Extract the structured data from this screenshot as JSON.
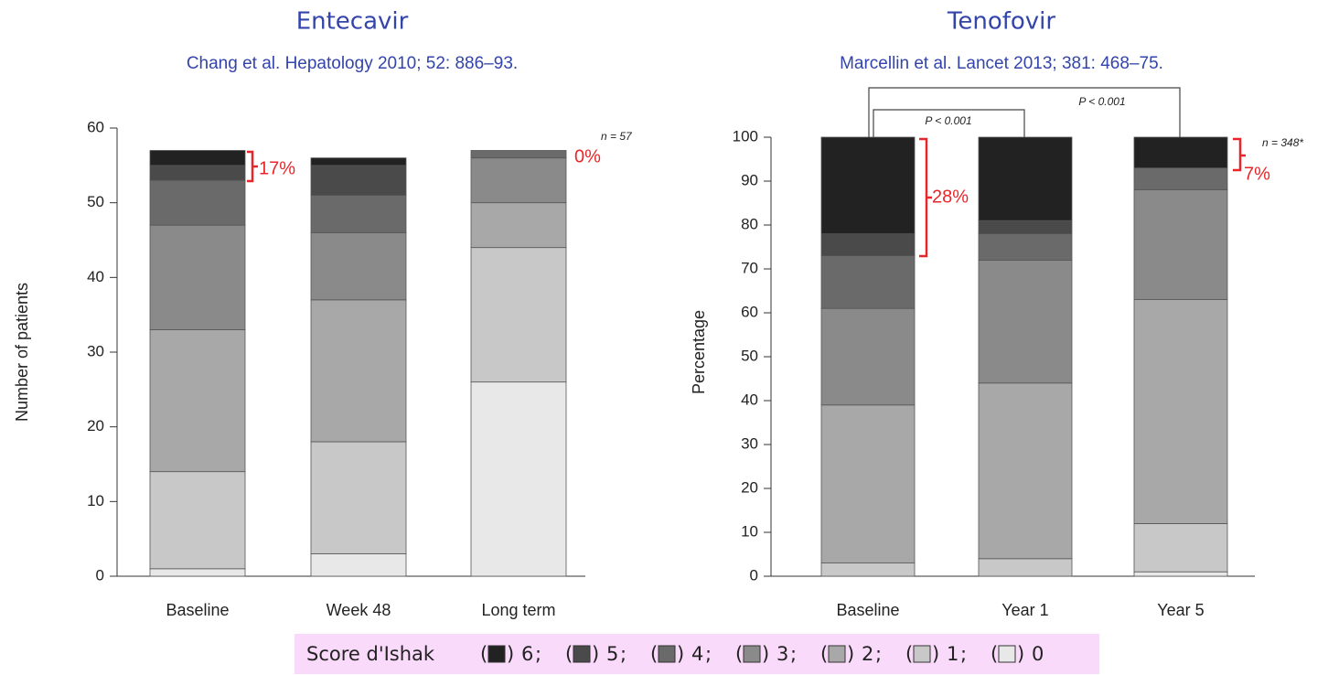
{
  "chart_data": [
    {
      "type": "stacked_bar",
      "title": "Entecavir",
      "subtitle": "Chang et al. Hepatology 2010; 52: 886–93.",
      "ylabel": "Number of patients",
      "categories": [
        "Baseline",
        "Week 48",
        "Long term"
      ],
      "series": [
        {
          "name": "0",
          "color": "#e8e8e8",
          "values": [
            1,
            3,
            26
          ]
        },
        {
          "name": "1",
          "color": "#c8c8c8",
          "values": [
            13,
            15,
            18
          ]
        },
        {
          "name": "2",
          "color": "#a8a8a8",
          "values": [
            19,
            19,
            6
          ]
        },
        {
          "name": "3",
          "color": "#8a8a8a",
          "values": [
            14,
            9,
            6
          ]
        },
        {
          "name": "4",
          "color": "#6a6a6a",
          "values": [
            6,
            5,
            1
          ]
        },
        {
          "name": "5",
          "color": "#4a4a4a",
          "values": [
            2,
            4,
            0
          ]
        },
        {
          "name": "6",
          "color": "#222222",
          "values": [
            2,
            1,
            0
          ]
        }
      ],
      "ylim": [
        0,
        60
      ],
      "yticks": [
        0,
        10,
        20,
        30,
        40,
        50,
        60
      ],
      "annotations": [
        "17%",
        "0%",
        "n = 57"
      ]
    },
    {
      "type": "stacked_bar",
      "title": "Tenofovir",
      "subtitle": "Marcellin et al. Lancet 2013; 381: 468–75.",
      "ylabel": "Percentage",
      "categories": [
        "Baseline",
        "Year 1",
        "Year 5"
      ],
      "series": [
        {
          "name": "0",
          "color": "#e8e8e8",
          "values": [
            0,
            0,
            1
          ]
        },
        {
          "name": "1",
          "color": "#c8c8c8",
          "values": [
            3,
            4,
            11
          ]
        },
        {
          "name": "2",
          "color": "#a8a8a8",
          "values": [
            36,
            40,
            51
          ]
        },
        {
          "name": "3",
          "color": "#8a8a8a",
          "values": [
            22,
            28,
            25
          ]
        },
        {
          "name": "4",
          "color": "#6a6a6a",
          "values": [
            12,
            6,
            5
          ]
        },
        {
          "name": "5",
          "color": "#4a4a4a",
          "values": [
            5,
            3,
            0
          ]
        },
        {
          "name": "6",
          "color": "#222222",
          "values": [
            22,
            19,
            7
          ]
        }
      ],
      "ylim": [
        0,
        100
      ],
      "yticks": [
        0,
        10,
        20,
        30,
        40,
        50,
        60,
        70,
        80,
        90,
        100
      ],
      "annotations": [
        "28%",
        "7%",
        "n = 348*",
        "P < 0.001",
        "P < 0.001"
      ]
    }
  ],
  "legend": {
    "title": "Score d'Ishak",
    "separator": ";"
  }
}
